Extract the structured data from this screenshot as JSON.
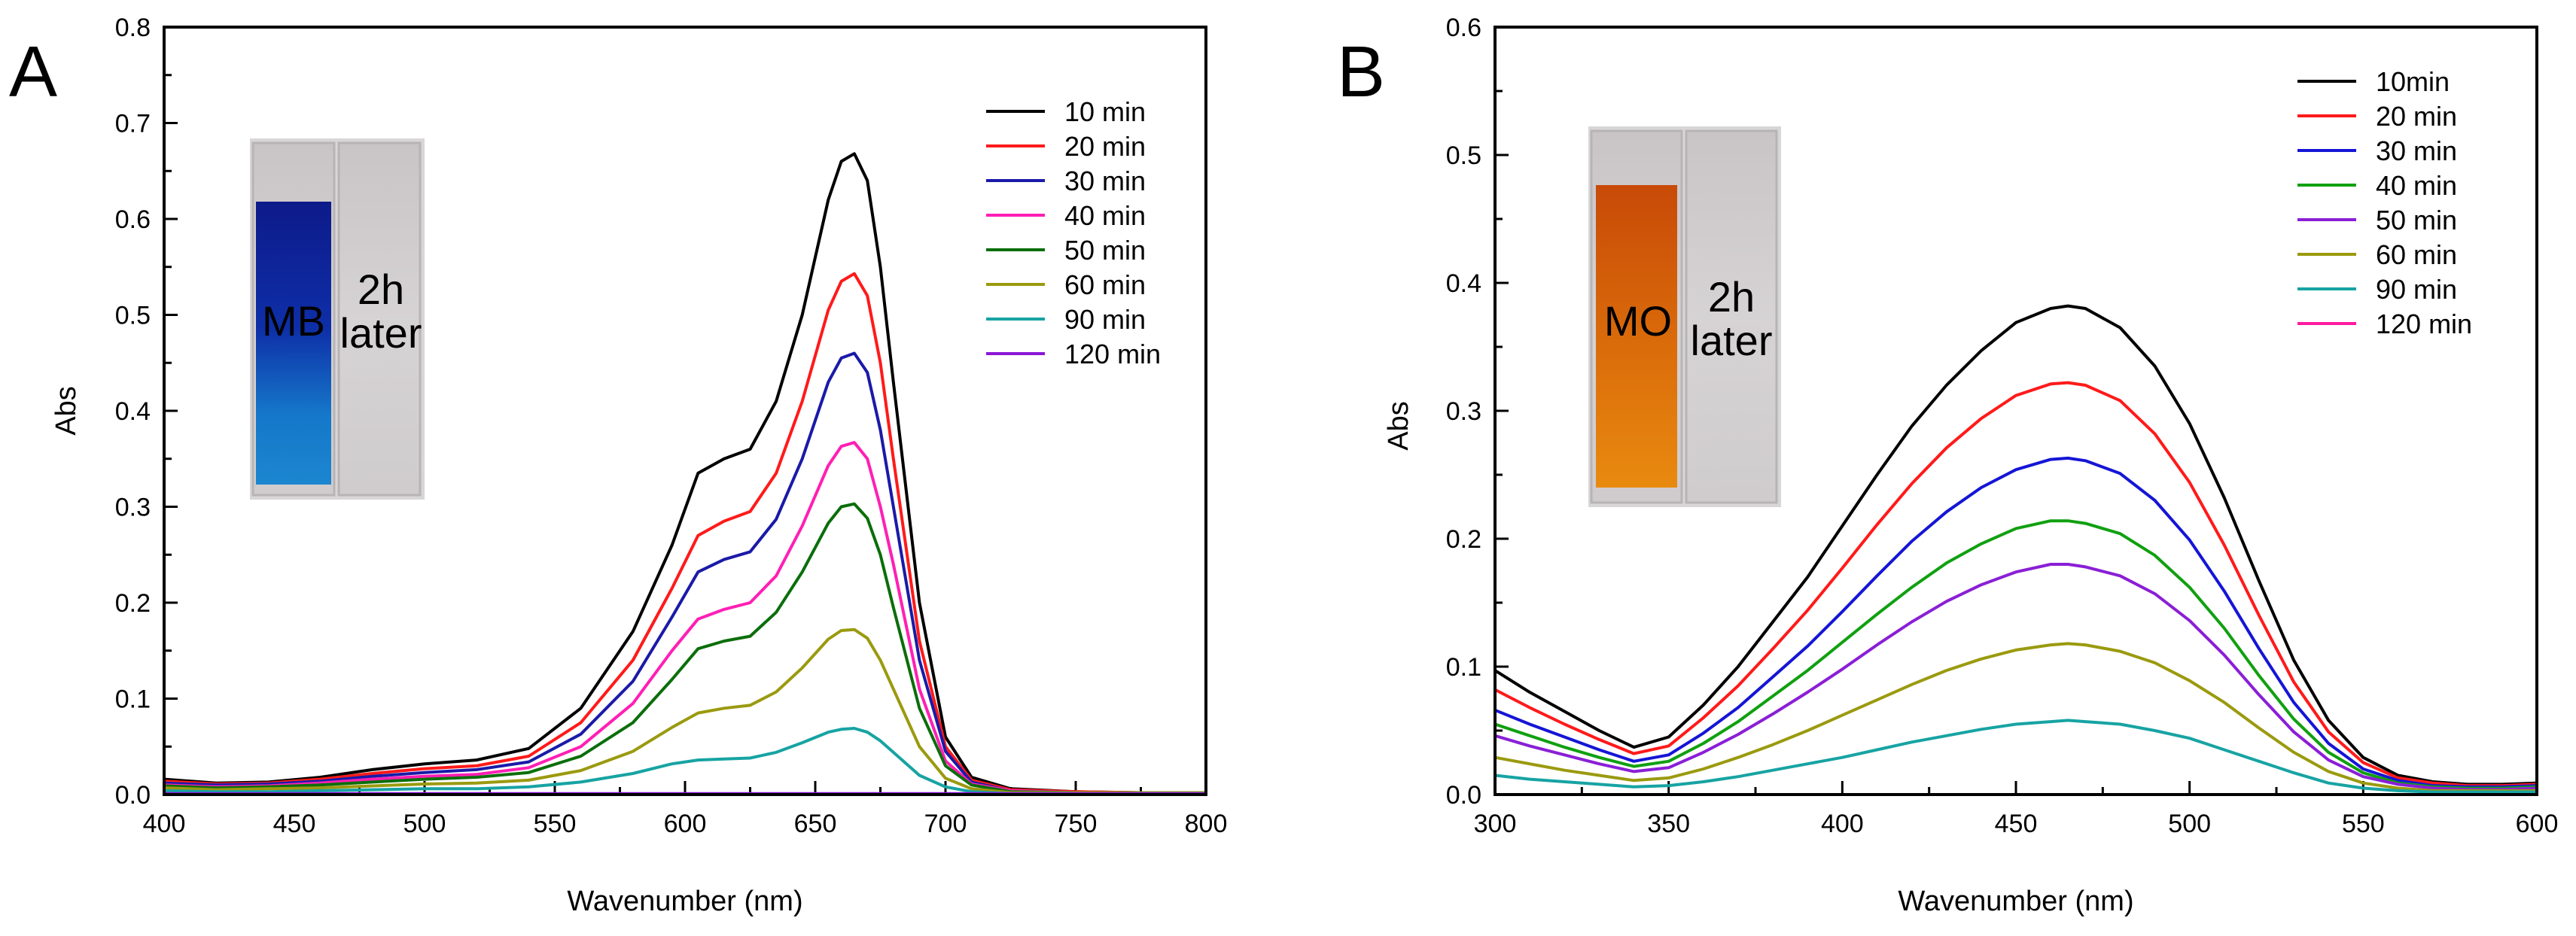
{
  "figure": {
    "panel_labels": [
      "A",
      "B"
    ]
  },
  "colors": {
    "10": "#000000",
    "20": "#ff1a1a",
    "30": "#1a1aa8",
    "40": "#ff1fb4",
    "50": "#0b6e0b",
    "60": "#9a9a0f",
    "90": "#17a3a3",
    "120a": "#8a16d6",
    "120b": "#ff1aa0",
    "b30": "#1515d6",
    "b40": "#10a010",
    "b50": "#8a1fd6"
  },
  "chart_data": [
    {
      "type": "line",
      "panel": "A",
      "xlabel": "Wavenumber (nm)",
      "ylabel": "Abs",
      "xlim": [
        400,
        800
      ],
      "ylim": [
        0,
        0.8
      ],
      "xticks": [
        400,
        450,
        500,
        550,
        600,
        650,
        700,
        750,
        800
      ],
      "yticks": [
        0.0,
        0.1,
        0.2,
        0.3,
        0.4,
        0.5,
        0.6,
        0.7,
        0.8
      ],
      "legend_position": "top-right",
      "inset": {
        "left_label": "MB",
        "right_label": "2h later"
      },
      "x": [
        400,
        420,
        440,
        460,
        480,
        500,
        520,
        540,
        560,
        580,
        595,
        605,
        615,
        625,
        635,
        645,
        655,
        660,
        665,
        670,
        675,
        680,
        690,
        700,
        710,
        725,
        750,
        775,
        800
      ],
      "series": [
        {
          "name": "10 min",
          "color": "#000000",
          "values": [
            0.016,
            0.012,
            0.013,
            0.018,
            0.026,
            0.032,
            0.036,
            0.048,
            0.09,
            0.17,
            0.26,
            0.335,
            0.35,
            0.36,
            0.41,
            0.5,
            0.62,
            0.66,
            0.668,
            0.64,
            0.55,
            0.43,
            0.2,
            0.06,
            0.018,
            0.006,
            0.003,
            0.002,
            0.002
          ]
        },
        {
          "name": "20 min",
          "color": "#ff1a1a",
          "values": [
            0.014,
            0.011,
            0.012,
            0.016,
            0.022,
            0.027,
            0.03,
            0.04,
            0.075,
            0.14,
            0.215,
            0.27,
            0.285,
            0.295,
            0.335,
            0.41,
            0.505,
            0.535,
            0.543,
            0.52,
            0.45,
            0.35,
            0.16,
            0.05,
            0.015,
            0.005,
            0.003,
            0.002,
            0.002
          ]
        },
        {
          "name": "30 min",
          "color": "#1a1aa8",
          "values": [
            0.012,
            0.01,
            0.011,
            0.014,
            0.019,
            0.023,
            0.026,
            0.034,
            0.063,
            0.118,
            0.185,
            0.232,
            0.245,
            0.253,
            0.287,
            0.35,
            0.43,
            0.455,
            0.46,
            0.44,
            0.38,
            0.3,
            0.14,
            0.045,
            0.013,
            0.004,
            0.002,
            0.002,
            0.002
          ]
        },
        {
          "name": "40 min",
          "color": "#ff1fb4",
          "values": [
            0.01,
            0.008,
            0.009,
            0.012,
            0.016,
            0.019,
            0.021,
            0.028,
            0.05,
            0.095,
            0.15,
            0.183,
            0.193,
            0.2,
            0.228,
            0.28,
            0.343,
            0.363,
            0.367,
            0.35,
            0.3,
            0.24,
            0.11,
            0.035,
            0.011,
            0.004,
            0.002,
            0.002,
            0.002
          ]
        },
        {
          "name": "50 min",
          "color": "#0b6e0b",
          "values": [
            0.009,
            0.007,
            0.008,
            0.01,
            0.013,
            0.016,
            0.018,
            0.023,
            0.04,
            0.075,
            0.12,
            0.152,
            0.16,
            0.165,
            0.19,
            0.232,
            0.283,
            0.3,
            0.303,
            0.288,
            0.25,
            0.195,
            0.09,
            0.03,
            0.01,
            0.003,
            0.002,
            0.002,
            0.002
          ]
        },
        {
          "name": "60 min",
          "color": "#9a9a0f",
          "values": [
            0.007,
            0.005,
            0.006,
            0.007,
            0.009,
            0.011,
            0.012,
            0.015,
            0.025,
            0.045,
            0.07,
            0.085,
            0.09,
            0.093,
            0.107,
            0.132,
            0.162,
            0.171,
            0.172,
            0.163,
            0.14,
            0.11,
            0.05,
            0.017,
            0.006,
            0.002,
            0.002,
            0.002,
            0.002
          ]
        },
        {
          "name": "90 min",
          "color": "#17a3a3",
          "values": [
            0.004,
            0.003,
            0.003,
            0.004,
            0.005,
            0.006,
            0.006,
            0.008,
            0.013,
            0.022,
            0.032,
            0.036,
            0.037,
            0.038,
            0.044,
            0.054,
            0.065,
            0.068,
            0.069,
            0.065,
            0.056,
            0.044,
            0.02,
            0.008,
            0.003,
            0.001,
            0.001,
            0.001,
            0.001
          ]
        },
        {
          "name": "120 min",
          "color": "#8a16d6",
          "values": [
            0.001,
            0.001,
            0.001,
            0.001,
            0.001,
            0.001,
            0.001,
            0.001,
            0.001,
            0.001,
            0.001,
            0.001,
            0.001,
            0.001,
            0.001,
            0.001,
            0.001,
            0.001,
            0.001,
            0.001,
            0.001,
            0.001,
            0.001,
            0.001,
            0.001,
            0.001,
            0.001,
            0.001,
            0.001
          ]
        }
      ]
    },
    {
      "type": "line",
      "panel": "B",
      "xlabel": "Wavenumber (nm)",
      "ylabel": "Abs",
      "xlim": [
        300,
        600
      ],
      "ylim": [
        0,
        0.6
      ],
      "xticks": [
        300,
        350,
        400,
        450,
        500,
        550,
        600
      ],
      "yticks": [
        0.0,
        0.1,
        0.2,
        0.3,
        0.4,
        0.5,
        0.6
      ],
      "legend_position": "top-right",
      "inset": {
        "left_label": "MO",
        "right_label": "2h later"
      },
      "x": [
        300,
        310,
        320,
        330,
        340,
        350,
        360,
        370,
        380,
        390,
        400,
        410,
        420,
        430,
        440,
        450,
        460,
        465,
        470,
        480,
        490,
        500,
        510,
        520,
        530,
        540,
        550,
        560,
        570,
        580,
        590,
        600
      ],
      "series": [
        {
          "name": "10min",
          "color": "#000000",
          "values": [
            0.097,
            0.08,
            0.065,
            0.05,
            0.037,
            0.045,
            0.07,
            0.1,
            0.135,
            0.17,
            0.21,
            0.25,
            0.288,
            0.32,
            0.347,
            0.369,
            0.38,
            0.382,
            0.38,
            0.365,
            0.335,
            0.29,
            0.232,
            0.167,
            0.105,
            0.058,
            0.029,
            0.015,
            0.01,
            0.008,
            0.008,
            0.009
          ]
        },
        {
          "name": "20 min",
          "color": "#ff1a1a",
          "values": [
            0.082,
            0.068,
            0.055,
            0.043,
            0.032,
            0.038,
            0.06,
            0.085,
            0.114,
            0.144,
            0.177,
            0.211,
            0.243,
            0.271,
            0.294,
            0.312,
            0.321,
            0.322,
            0.32,
            0.308,
            0.282,
            0.244,
            0.195,
            0.14,
            0.088,
            0.049,
            0.025,
            0.013,
            0.009,
            0.007,
            0.007,
            0.008
          ]
        },
        {
          "name": "30 min",
          "color": "#1515d6",
          "values": [
            0.066,
            0.055,
            0.045,
            0.035,
            0.026,
            0.031,
            0.048,
            0.068,
            0.092,
            0.116,
            0.143,
            0.171,
            0.198,
            0.221,
            0.24,
            0.254,
            0.262,
            0.263,
            0.261,
            0.251,
            0.23,
            0.199,
            0.159,
            0.114,
            0.072,
            0.04,
            0.02,
            0.011,
            0.007,
            0.006,
            0.006,
            0.007
          ]
        },
        {
          "name": "40 min",
          "color": "#10a010",
          "values": [
            0.055,
            0.046,
            0.037,
            0.029,
            0.022,
            0.026,
            0.04,
            0.057,
            0.077,
            0.097,
            0.119,
            0.141,
            0.162,
            0.181,
            0.196,
            0.208,
            0.214,
            0.214,
            0.212,
            0.204,
            0.187,
            0.162,
            0.13,
            0.093,
            0.059,
            0.033,
            0.017,
            0.009,
            0.006,
            0.005,
            0.005,
            0.006
          ]
        },
        {
          "name": "50 min",
          "color": "#8a1fd6",
          "values": [
            0.046,
            0.038,
            0.031,
            0.024,
            0.018,
            0.021,
            0.033,
            0.047,
            0.063,
            0.08,
            0.098,
            0.117,
            0.135,
            0.151,
            0.164,
            0.174,
            0.18,
            0.18,
            0.178,
            0.171,
            0.157,
            0.136,
            0.109,
            0.078,
            0.049,
            0.027,
            0.014,
            0.008,
            0.005,
            0.004,
            0.004,
            0.005
          ]
        },
        {
          "name": "60 min",
          "color": "#9a9a0f",
          "values": [
            0.029,
            0.024,
            0.019,
            0.015,
            0.011,
            0.013,
            0.02,
            0.029,
            0.039,
            0.05,
            0.062,
            0.074,
            0.086,
            0.097,
            0.106,
            0.113,
            0.117,
            0.118,
            0.117,
            0.112,
            0.103,
            0.089,
            0.072,
            0.052,
            0.033,
            0.018,
            0.009,
            0.005,
            0.003,
            0.003,
            0.003,
            0.003
          ]
        },
        {
          "name": "90 min",
          "color": "#17a3a3",
          "values": [
            0.015,
            0.012,
            0.01,
            0.008,
            0.006,
            0.007,
            0.01,
            0.014,
            0.019,
            0.024,
            0.029,
            0.035,
            0.041,
            0.046,
            0.051,
            0.055,
            0.057,
            0.058,
            0.057,
            0.055,
            0.05,
            0.044,
            0.035,
            0.026,
            0.017,
            0.009,
            0.005,
            0.003,
            0.002,
            0.002,
            0.002,
            0.002
          ]
        },
        {
          "name": "120 min",
          "color": "#ff1aa0",
          "values": [
            0.0,
            0.0,
            0.0,
            0.0,
            0.0,
            0.0,
            0.0,
            0.0,
            0.0,
            0.0,
            0.0,
            0.0,
            0.0,
            0.0,
            0.0,
            0.0,
            0.0,
            0.0,
            0.0,
            0.0,
            0.0,
            0.0,
            0.0,
            0.0,
            0.0,
            0.0,
            0.0,
            0.0,
            0.0,
            0.0,
            0.0,
            0.0
          ]
        }
      ]
    }
  ]
}
